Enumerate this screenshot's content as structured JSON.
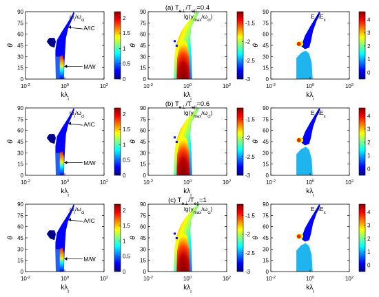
{
  "figure": {
    "row_titles": [
      {
        "pre": "(a) T",
        "sub1": "e⊥",
        "mid": "/T",
        "sub2": "e||",
        "post": "=0.4"
      },
      {
        "pre": "(b) T",
        "sub1": "e⊥",
        "mid": "/T",
        "sub2": "e||",
        "post": "=0.6"
      },
      {
        "pre": "(c) T",
        "sub1": "e⊥",
        "mid": "/T",
        "sub2": "e||",
        "post": "=1"
      }
    ],
    "axes": {
      "y_symbol": "θ",
      "x_base": "kλ",
      "x_sub": "i",
      "yticks": [
        "0",
        "15",
        "30",
        "45",
        "60",
        "75",
        "90"
      ],
      "xticks": [
        {
          "base": "10",
          "exp": "-2"
        },
        {
          "base": "10",
          "exp": "0"
        },
        {
          "base": "10",
          "exp": "2"
        }
      ]
    },
    "column_labels": [
      {
        "pre": "ω",
        "sub": "i",
        "mid": "/ω",
        "sub2": "ci"
      },
      {
        "pre": "lg(γ",
        "sub": "max",
        "mid": "/ω",
        "sub2": "ci",
        "post": ")"
      },
      {
        "pre": "E",
        "sub": "y",
        "mid": "/iE",
        "sub2": "x"
      }
    ],
    "annotations": {
      "upper": "A/IC",
      "lower": "M/W"
    },
    "colorbars": [
      {
        "ticks": [
          "0",
          "0.5",
          "1",
          "1.5",
          "2"
        ]
      },
      {
        "ticks": [
          "-3",
          "-2.5",
          "-2",
          "-1.5"
        ]
      },
      {
        "ticks": [
          "0",
          "1",
          "2",
          "3",
          "4"
        ]
      }
    ],
    "colors": {
      "blue_dark": "#00008f",
      "blue": "#0000ff",
      "cyan": "#00ffff",
      "yellow": "#ffff00",
      "orange": "#ff8000",
      "red_dark": "#800000",
      "light_blue": "#1fb4ee"
    }
  },
  "chart_data": [
    {
      "type": "heatmap",
      "panel": "a1",
      "quantity": "ωi/ωci",
      "xscale": "log",
      "xlim": [
        0.01,
        100
      ],
      "ylim": [
        0,
        90
      ],
      "clim": [
        0,
        2.2
      ],
      "row": 0,
      "col": 0
    },
    {
      "type": "heatmap",
      "panel": "a2",
      "quantity": "lg(γmax/ωci)",
      "xscale": "log",
      "xlim": [
        0.01,
        100
      ],
      "ylim": [
        0,
        90
      ],
      "clim": [
        -3,
        -1.2
      ],
      "row": 0,
      "col": 1
    },
    {
      "type": "heatmap",
      "panel": "a3",
      "quantity": "Ey/iEx",
      "xscale": "log",
      "xlim": [
        0.01,
        100
      ],
      "ylim": [
        0,
        90
      ],
      "clim": [
        -0.5,
        4.6
      ],
      "row": 0,
      "col": 2
    },
    {
      "type": "heatmap",
      "panel": "b1",
      "quantity": "ωi/ωci",
      "xscale": "log",
      "xlim": [
        0.01,
        100
      ],
      "ylim": [
        0,
        90
      ],
      "clim": [
        0,
        2.2
      ],
      "row": 1,
      "col": 0
    },
    {
      "type": "heatmap",
      "panel": "b2",
      "quantity": "lg(γmax/ωci)",
      "xscale": "log",
      "xlim": [
        0.01,
        100
      ],
      "ylim": [
        0,
        90
      ],
      "clim": [
        -3,
        -1.2
      ],
      "row": 1,
      "col": 1
    },
    {
      "type": "heatmap",
      "panel": "b3",
      "quantity": "Ey/iEx",
      "xscale": "log",
      "xlim": [
        0.01,
        100
      ],
      "ylim": [
        0,
        90
      ],
      "clim": [
        -0.5,
        4.6
      ],
      "row": 1,
      "col": 2
    },
    {
      "type": "heatmap",
      "panel": "c1",
      "quantity": "ωi/ωci",
      "xscale": "log",
      "xlim": [
        0.01,
        100
      ],
      "ylim": [
        0,
        90
      ],
      "clim": [
        0,
        2.2
      ],
      "row": 2,
      "col": 0
    },
    {
      "type": "heatmap",
      "panel": "c2",
      "quantity": "lg(γmax/ωci)",
      "xscale": "log",
      "xlim": [
        0.01,
        100
      ],
      "ylim": [
        0,
        90
      ],
      "clim": [
        -3,
        -1.2
      ],
      "row": 2,
      "col": 1
    },
    {
      "type": "heatmap",
      "panel": "c3",
      "quantity": "Ey/iEx",
      "xscale": "log",
      "xlim": [
        0.01,
        100
      ],
      "ylim": [
        0,
        90
      ],
      "clim": [
        -0.5,
        4.6
      ],
      "row": 2,
      "col": 2
    }
  ]
}
